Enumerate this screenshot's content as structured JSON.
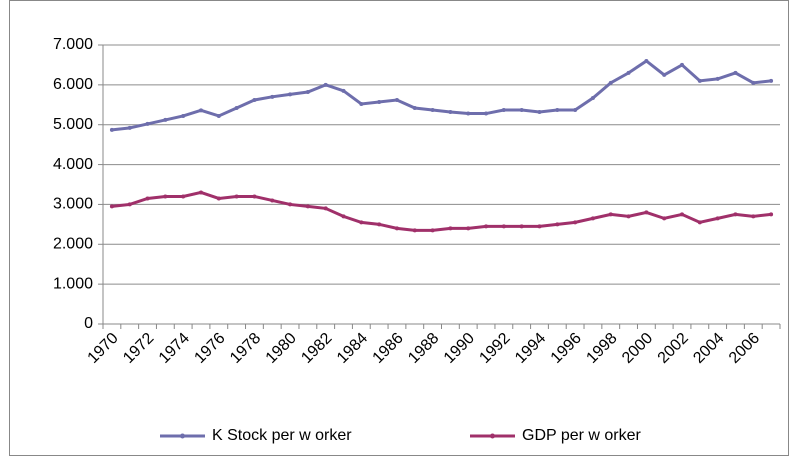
{
  "chart_data": {
    "type": "line",
    "categories": [
      "1970",
      null,
      "1972",
      null,
      "1974",
      null,
      "1976",
      null,
      "1978",
      null,
      "1980",
      null,
      "1982",
      null,
      "1984",
      null,
      "1986",
      null,
      "1988",
      null,
      "1990",
      null,
      "1992",
      null,
      "1994",
      null,
      "1996",
      null,
      "1998",
      null,
      "2000",
      null,
      "2002",
      null,
      "2004",
      null,
      "2006",
      null
    ],
    "series": [
      {
        "name": "K Stock per w orker",
        "color": "#6e6eac",
        "values": [
          4870,
          4920,
          5020,
          5120,
          5220,
          5360,
          5220,
          5420,
          5620,
          5700,
          5760,
          5820,
          6000,
          5850,
          5520,
          5570,
          5620,
          5420,
          5370,
          5320,
          5280,
          5280,
          5370,
          5370,
          5320,
          5370,
          5370,
          5670,
          6050,
          6300,
          6600,
          6250,
          6500,
          6100,
          6150,
          6300,
          6050,
          6100
        ]
      },
      {
        "name": "GDP per w orker",
        "color": "#a0306a",
        "values": [
          2950,
          3000,
          3150,
          3200,
          3200,
          3300,
          3150,
          3200,
          3200,
          3100,
          3000,
          2950,
          2900,
          2700,
          2550,
          2500,
          2400,
          2350,
          2350,
          2400,
          2400,
          2450,
          2450,
          2450,
          2450,
          2500,
          2550,
          2650,
          2750,
          2700,
          2800,
          2650,
          2750,
          2550,
          2650,
          2750,
          2700,
          2750
        ]
      }
    ],
    "ylim": [
      0,
      7000
    ],
    "yticks": [
      0,
      {
        "value": 1000,
        "label": "1.000"
      },
      {
        "value": 2000,
        "label": "2.000"
      },
      {
        "value": 3000,
        "label": "3.000"
      },
      {
        "value": 4000,
        "label": "4.000"
      },
      {
        "value": 5000,
        "label": "5.000"
      },
      {
        "value": 6000,
        "label": "6.000"
      },
      {
        "value": 7000,
        "label": "7.000"
      }
    ],
    "grid": true,
    "legend": "bottom"
  }
}
